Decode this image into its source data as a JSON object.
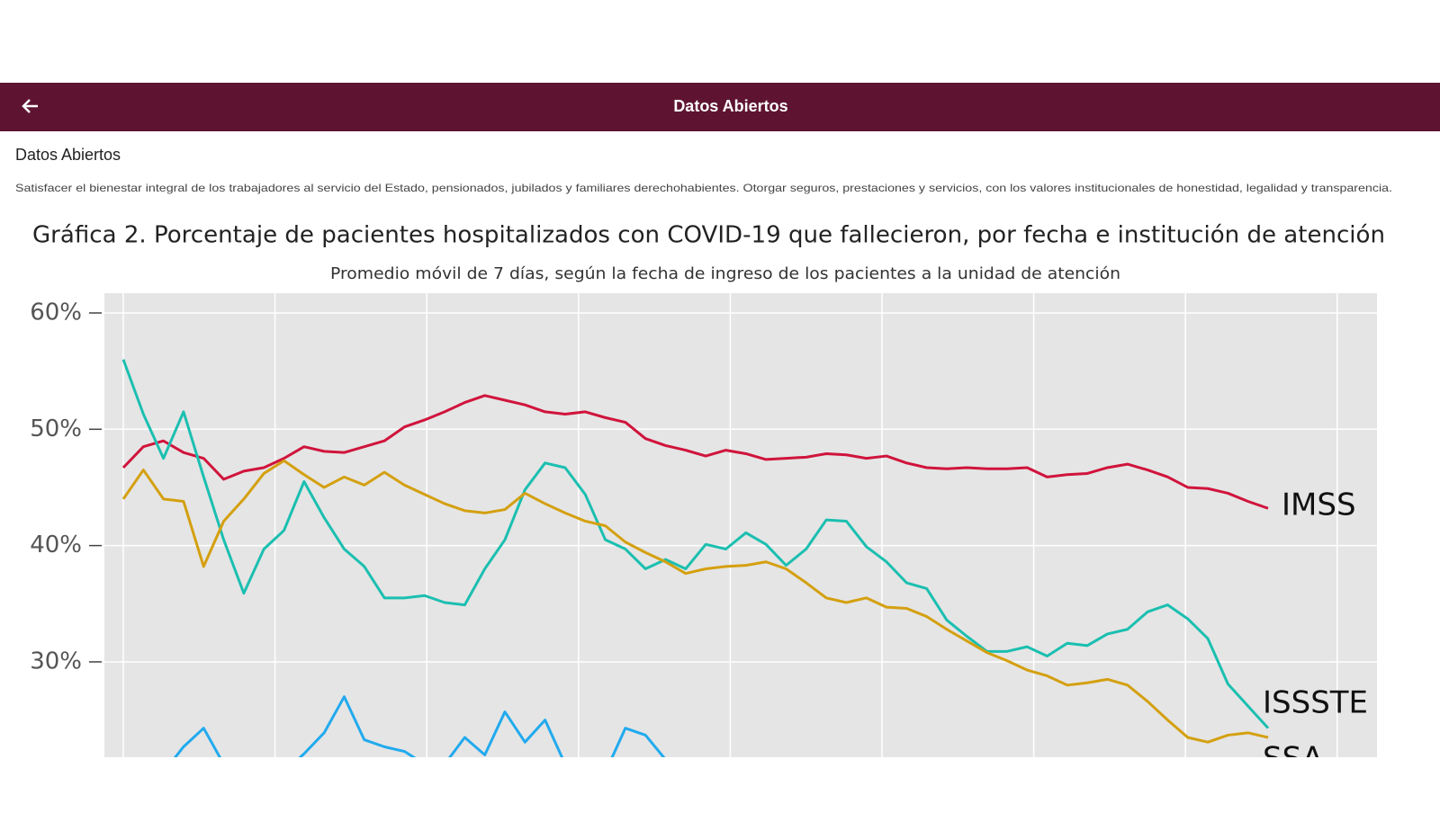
{
  "header": {
    "title": "Datos Abiertos"
  },
  "page": {
    "heading": "Datos Abiertos",
    "description": "Satisfacer el bienestar integral de los trabajadores al servicio del Estado, pensionados, jubilados y familiares derechohabientes. Otorgar seguros, prestaciones y servicios, con los valores institucionales de honestidad, legalidad y transparencia."
  },
  "chart_data": {
    "type": "line",
    "title": "Gráfica 2. Porcentaje de pacientes hospitalizados con COVID-19 que fallecieron, por fecha e institución de atención",
    "subtitle": "Promedio móvil de 7 días, según la fecha de ingreso de los pacientes a la unidad de atención",
    "categories": [
      null,
      null,
      null,
      null,
      null,
      null,
      null,
      null,
      null,
      null,
      null,
      null,
      null,
      null,
      null,
      null,
      null,
      null,
      null,
      null,
      null,
      null,
      null,
      null,
      null,
      null,
      null,
      null,
      null,
      null,
      null,
      null,
      null,
      null,
      null,
      null,
      null,
      null,
      null,
      null,
      null,
      null,
      null,
      null,
      null,
      null,
      null,
      null,
      null,
      null,
      null,
      null,
      null,
      null,
      null,
      null,
      null,
      null
    ],
    "ylim": [
      21.8,
      61.7
    ],
    "yticks": [
      {
        "value": 30,
        "label": "30%"
      },
      {
        "value": 40,
        "label": "40%"
      },
      {
        "value": 50,
        "label": "50%"
      },
      {
        "value": 60,
        "label": "60%"
      }
    ],
    "grid": true,
    "series": [
      {
        "name": "IMSS",
        "color": "#d0143c",
        "values": [
          46.7,
          48.5,
          49.0,
          48.0,
          47.5,
          45.7,
          46.4,
          46.7,
          47.5,
          48.5,
          48.1,
          48.0,
          48.5,
          49.0,
          50.2,
          50.8,
          51.5,
          52.3,
          52.9,
          52.5,
          52.1,
          51.5,
          51.3,
          51.5,
          51.0,
          50.6,
          49.2,
          48.6,
          48.2,
          47.7,
          48.2,
          47.9,
          47.4,
          47.5,
          47.6,
          47.9,
          47.8,
          47.5,
          47.7,
          47.1,
          46.7,
          46.6,
          46.7,
          46.6,
          46.6,
          46.7,
          45.9,
          46.1,
          46.2,
          46.7,
          47.0,
          46.5,
          45.9,
          45.0,
          44.9,
          44.5,
          43.8,
          43.2
        ]
      },
      {
        "name": "ISSSTE",
        "color": "#1bbfb0",
        "values": [
          56.0,
          51.3,
          47.5,
          51.5,
          45.9,
          40.5,
          35.9,
          39.7,
          41.3,
          45.5,
          42.4,
          39.7,
          38.2,
          35.5,
          35.5,
          35.7,
          35.1,
          34.9,
          38.0,
          40.5,
          44.8,
          47.1,
          46.7,
          44.4,
          40.5,
          39.7,
          38.0,
          38.8,
          38.0,
          40.1,
          39.7,
          41.1,
          40.1,
          38.3,
          39.7,
          42.2,
          42.1,
          39.9,
          38.6,
          36.8,
          36.3,
          33.6,
          32.2,
          30.9,
          30.9,
          31.3,
          30.5,
          31.6,
          31.4,
          32.4,
          32.8,
          34.3,
          34.9,
          33.7,
          32.0,
          28.1,
          26.2,
          24.3
        ]
      },
      {
        "name": "SSA",
        "color": "#d4a010",
        "values": [
          44.0,
          46.5,
          44.0,
          43.8,
          38.2,
          42.1,
          44.0,
          46.2,
          47.3,
          46.1,
          45.0,
          45.9,
          45.2,
          46.3,
          45.2,
          44.4,
          43.6,
          43.0,
          42.8,
          43.1,
          44.5,
          43.6,
          42.8,
          42.1,
          41.7,
          40.3,
          39.4,
          38.6,
          37.6,
          38.0,
          38.2,
          38.3,
          38.6,
          38.0,
          36.8,
          35.5,
          35.1,
          35.5,
          34.7,
          34.6,
          33.9,
          32.8,
          31.8,
          30.8,
          30.1,
          29.3,
          28.8,
          28.0,
          28.2,
          28.5,
          28.0,
          26.6,
          25.0,
          23.5,
          23.1,
          23.7,
          23.9,
          23.5
        ]
      },
      {
        "color": "#22aaee",
        "values": [
          20.5,
          20.5,
          20.5,
          22.7,
          24.3,
          21.2,
          20.5,
          20.5,
          20.5,
          22.1,
          23.9,
          27.0,
          23.3,
          22.7,
          22.3,
          21.2,
          21.2,
          23.5,
          22.0,
          25.7,
          23.1,
          25.0,
          21.2,
          20.5,
          20.5,
          24.3,
          23.7,
          21.6,
          null,
          null,
          null,
          null,
          null,
          null,
          null,
          null,
          null,
          null,
          null,
          null,
          null,
          null,
          null,
          null,
          null,
          null,
          null,
          null,
          null,
          null,
          null,
          null,
          null,
          null,
          null,
          null,
          null,
          null
        ]
      }
    ]
  }
}
